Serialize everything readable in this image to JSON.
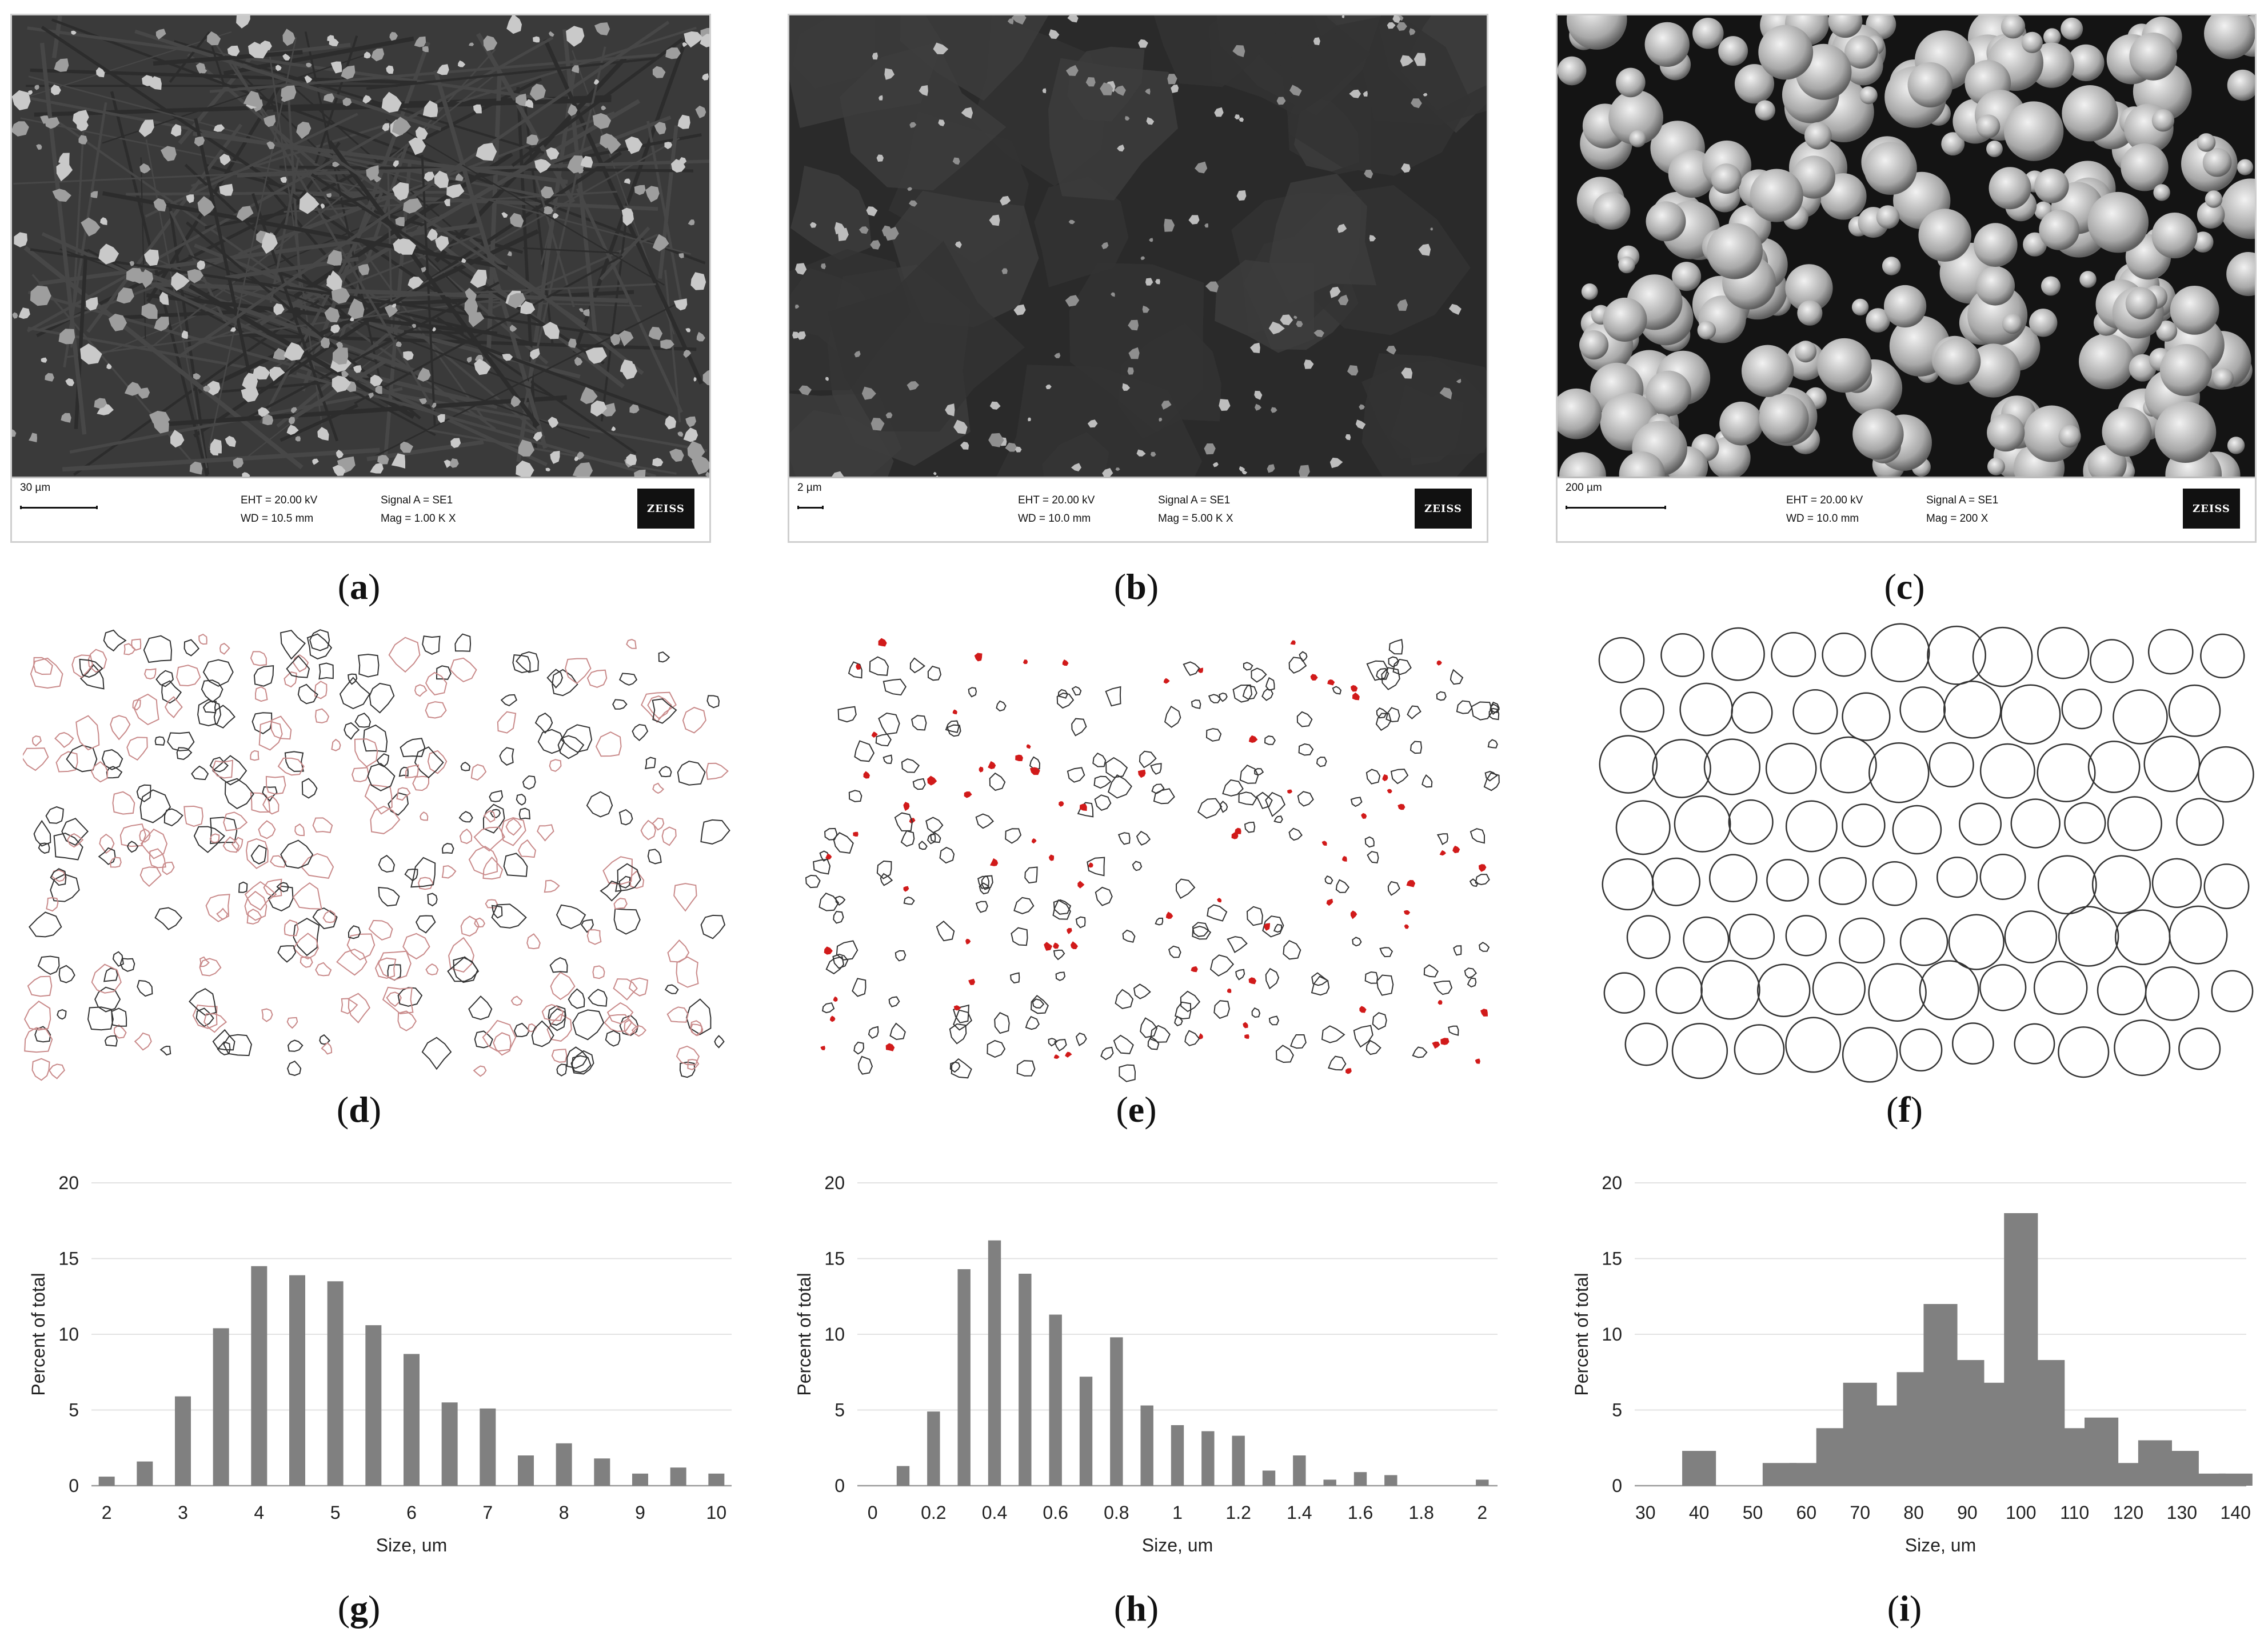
{
  "sem_panels": [
    {
      "scale": "30 µm",
      "eht": "EHT = 20.00 kV",
      "wd": "WD = 10.5 mm",
      "signal": "Signal A = SE1",
      "mag": "Mag =   1.00 K X",
      "logo": "ZEISS"
    },
    {
      "scale": "2 µm",
      "eht": "EHT = 20.00 kV",
      "wd": "WD = 10.0 mm",
      "signal": "Signal A = SE1",
      "mag": "Mag =   5.00 K X",
      "logo": "ZEISS"
    },
    {
      "scale": "200 µm",
      "eht": "EHT = 20.00 kV",
      "wd": "WD = 10.0 mm",
      "signal": "Signal A = SE1",
      "mag": "Mag =    200 X",
      "logo": "ZEISS"
    }
  ],
  "captions": {
    "a": "a",
    "b": "b",
    "c": "c",
    "d": "d",
    "e": "e",
    "f": "f",
    "g": "g",
    "h": "h",
    "i": "i"
  },
  "colors": {
    "bar": "#808080",
    "outline": "#333333",
    "label_red": "#d11a1a",
    "grid": "#e2e2e2"
  },
  "chart_data": [
    {
      "type": "bar",
      "panel": "g",
      "x": [
        2,
        2.5,
        3,
        3.5,
        4,
        4.5,
        5,
        5.5,
        6,
        6.5,
        7,
        7.5,
        8,
        8.5,
        9,
        9.5,
        10
      ],
      "values": [
        0.6,
        1.6,
        5.9,
        10.4,
        14.5,
        13.9,
        13.5,
        10.6,
        8.7,
        5.5,
        5.1,
        2.0,
        2.8,
        1.8,
        0.8,
        1.2,
        0.8
      ],
      "xlim": [
        1.8,
        10.2
      ],
      "xticks": [
        2,
        3,
        4,
        5,
        6,
        7,
        8,
        9,
        10
      ],
      "ylim": [
        0,
        20
      ],
      "yticks": [
        0,
        5,
        10,
        15,
        20
      ],
      "xlabel": "Size, um",
      "ylabel": "Percent of total",
      "grid": true
    },
    {
      "type": "bar",
      "panel": "h",
      "x": [
        0.1,
        0.2,
        0.3,
        0.4,
        0.5,
        0.6,
        0.7,
        0.8,
        0.9,
        1.0,
        1.1,
        1.2,
        1.3,
        1.4,
        1.5,
        1.6,
        1.7,
        2.0
      ],
      "values": [
        1.3,
        4.9,
        14.3,
        16.2,
        14.0,
        11.3,
        7.2,
        9.8,
        5.3,
        4.0,
        3.6,
        3.3,
        1.0,
        2.0,
        0.4,
        0.9,
        0.7,
        0.4
      ],
      "xlim": [
        -0.05,
        2.05
      ],
      "xticks": [
        0,
        0.2,
        0.4,
        0.6,
        0.8,
        1,
        1.2,
        1.4,
        1.6,
        1.8,
        2
      ],
      "ylim": [
        0,
        20
      ],
      "yticks": [
        0,
        5,
        10,
        15,
        20
      ],
      "xlabel": "Size, um",
      "ylabel": "Percent of total",
      "grid": true
    },
    {
      "type": "bar",
      "panel": "i",
      "x": [
        40,
        55,
        60,
        65,
        70,
        75,
        80,
        85,
        90,
        95,
        100,
        105,
        110,
        115,
        120,
        125,
        130,
        135,
        140
      ],
      "values": [
        2.3,
        1.5,
        1.5,
        3.8,
        6.8,
        5.3,
        7.5,
        12.0,
        8.3,
        6.8,
        18.0,
        8.3,
        3.8,
        4.5,
        1.5,
        3.0,
        2.3,
        0.8,
        0.8
      ],
      "xlim": [
        28,
        142
      ],
      "xticks": [
        30,
        40,
        50,
        60,
        70,
        80,
        90,
        100,
        110,
        120,
        130,
        140
      ],
      "ylim": [
        0,
        20
      ],
      "yticks": [
        0,
        5,
        10,
        15,
        20
      ],
      "xlabel": "Size, um",
      "ylabel": "Percent of total",
      "grid": true
    }
  ]
}
